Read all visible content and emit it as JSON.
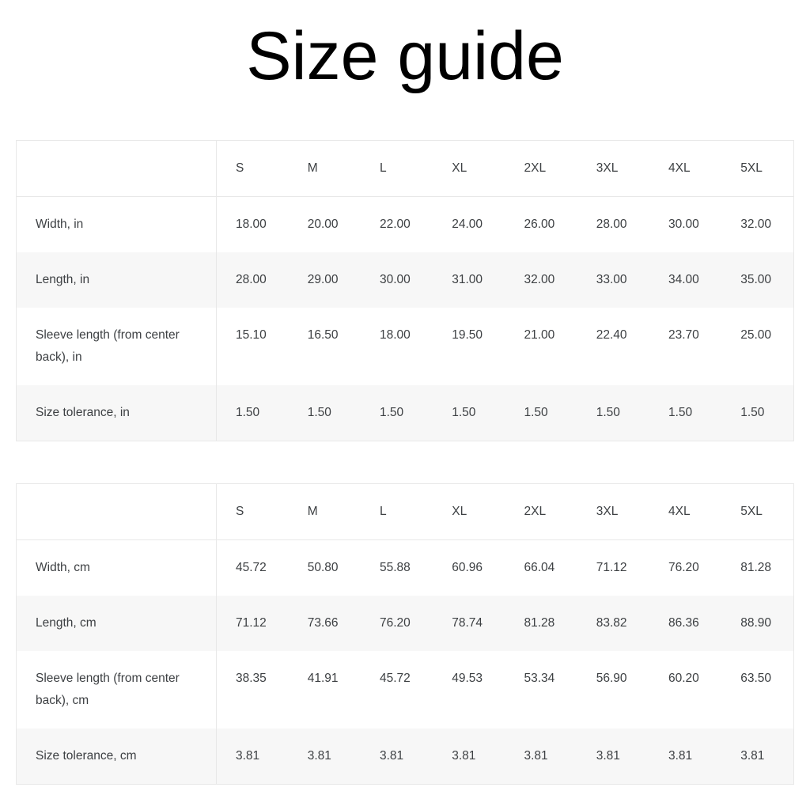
{
  "title": "Size guide",
  "colors": {
    "background": "#ffffff",
    "title_text": "#000000",
    "table_text": "#3d4043",
    "border": "#e8e8e8",
    "alt_row_background": "#f7f7f7"
  },
  "tables": [
    {
      "unit": "inches",
      "sizes": [
        "S",
        "M",
        "L",
        "XL",
        "2XL",
        "3XL",
        "4XL",
        "5XL"
      ],
      "rows": [
        {
          "label": "Width, in",
          "values": [
            "18.00",
            "20.00",
            "22.00",
            "24.00",
            "26.00",
            "28.00",
            "30.00",
            "32.00"
          ]
        },
        {
          "label": "Length, in",
          "values": [
            "28.00",
            "29.00",
            "30.00",
            "31.00",
            "32.00",
            "33.00",
            "34.00",
            "35.00"
          ]
        },
        {
          "label": "Sleeve length (from center back), in",
          "values": [
            "15.10",
            "16.50",
            "18.00",
            "19.50",
            "21.00",
            "22.40",
            "23.70",
            "25.00"
          ]
        },
        {
          "label": "Size tolerance, in",
          "values": [
            "1.50",
            "1.50",
            "1.50",
            "1.50",
            "1.50",
            "1.50",
            "1.50",
            "1.50"
          ]
        }
      ]
    },
    {
      "unit": "centimeters",
      "sizes": [
        "S",
        "M",
        "L",
        "XL",
        "2XL",
        "3XL",
        "4XL",
        "5XL"
      ],
      "rows": [
        {
          "label": "Width, cm",
          "values": [
            "45.72",
            "50.80",
            "55.88",
            "60.96",
            "66.04",
            "71.12",
            "76.20",
            "81.28"
          ]
        },
        {
          "label": "Length, cm",
          "values": [
            "71.12",
            "73.66",
            "76.20",
            "78.74",
            "81.28",
            "83.82",
            "86.36",
            "88.90"
          ]
        },
        {
          "label": "Sleeve length (from center back), cm",
          "values": [
            "38.35",
            "41.91",
            "45.72",
            "49.53",
            "53.34",
            "56.90",
            "60.20",
            "63.50"
          ]
        },
        {
          "label": "Size tolerance, cm",
          "values": [
            "3.81",
            "3.81",
            "3.81",
            "3.81",
            "3.81",
            "3.81",
            "3.81",
            "3.81"
          ]
        }
      ]
    }
  ]
}
